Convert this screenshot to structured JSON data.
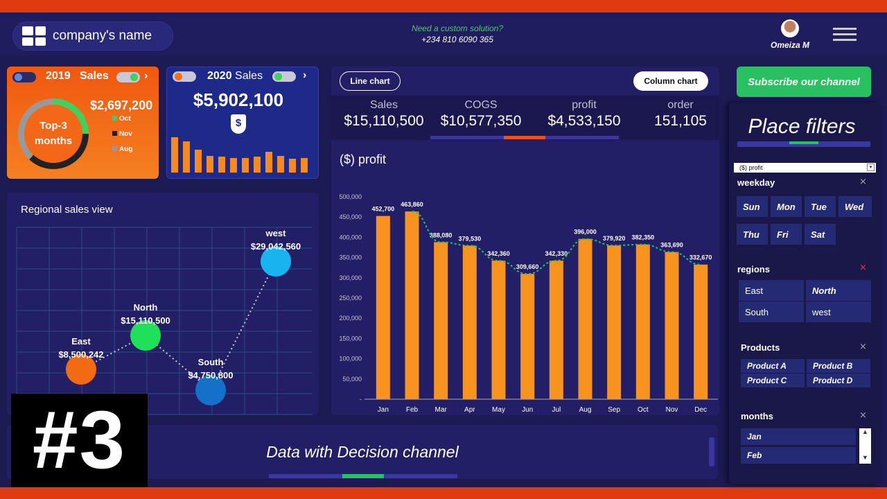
{
  "header": {
    "company": "company's name",
    "contact_q": "Need a custom solution?",
    "contact_phone": "+234 810 6090 365",
    "user": "Omeiza M"
  },
  "card2019": {
    "year": "2019",
    "label": "Sales",
    "ring_text": "Top-3 months",
    "value": "$2,697,200",
    "legend": [
      "Oct",
      "Nov",
      "Aug"
    ]
  },
  "card2020": {
    "year": "2020",
    "label": "Sales",
    "value": "$5,902,100",
    "symbol": "$",
    "bars": [
      0.85,
      0.75,
      0.55,
      0.4,
      0.38,
      0.35,
      0.35,
      0.38,
      0.5,
      0.4,
      0.33,
      0.35
    ]
  },
  "chart_toggle": {
    "line": "Line chart",
    "column": "Column chart"
  },
  "kpis": [
    {
      "label": "Sales",
      "value": "$15,110,500"
    },
    {
      "label": "COGS",
      "value": "$10,577,350"
    },
    {
      "label": "profit",
      "value": "$4,533,150"
    },
    {
      "label": "order",
      "value": "151,105"
    }
  ],
  "regional": {
    "title": "Regional sales view",
    "points": [
      {
        "name": "East",
        "value": "$8,500,242",
        "color": "#f26b12"
      },
      {
        "name": "North",
        "value": "$15,110,500",
        "color": "#1ee05a"
      },
      {
        "name": "South",
        "value": "$4,750,800",
        "color": "#1570c8"
      },
      {
        "name": "west",
        "value": "$29,042,560",
        "color": "#18b4f0"
      }
    ]
  },
  "chart_data": {
    "type": "bar",
    "title": "($) profit",
    "categories": [
      "Jan",
      "Feb",
      "Mar",
      "Apr",
      "May",
      "Jun",
      "Jul",
      "Aug",
      "Sep",
      "Oct",
      "Nov",
      "Dec"
    ],
    "values": [
      452700,
      463860,
      388080,
      379530,
      342360,
      309660,
      342330,
      396000,
      379920,
      382350,
      363690,
      332670
    ],
    "labels": [
      "452,700",
      "463,860",
      "388,080",
      "379,530",
      "342,360",
      "309,660",
      "342,330",
      "396,000",
      "379,920",
      "382,350",
      "363,690",
      "332,670"
    ],
    "ylim": [
      0,
      500000
    ],
    "yticks": [
      "500,000",
      "450,000",
      "400,000",
      "350,000",
      "300,000",
      "250,000",
      "200,000",
      "150,000",
      "100,000",
      "50,000",
      "-"
    ],
    "trendline": true
  },
  "filters": {
    "subscribe": "Subscribe our channel",
    "title": "Place filters",
    "measure": "($) profit",
    "weekday_label": "weekday",
    "weekdays": [
      "Sun",
      "Mon",
      "Tue",
      "Wed",
      "Thu",
      "Fri",
      "Sat"
    ],
    "regions_label": "regions",
    "regions": [
      "East",
      "North",
      "South",
      "west"
    ],
    "products_label": "Products",
    "products": [
      "Product A",
      "Product B",
      "Product C",
      "Product D"
    ],
    "months_label": "months",
    "months": [
      "Jan",
      "Feb"
    ]
  },
  "footer": {
    "channel": "Data with Decision channel",
    "episode": "#3"
  }
}
